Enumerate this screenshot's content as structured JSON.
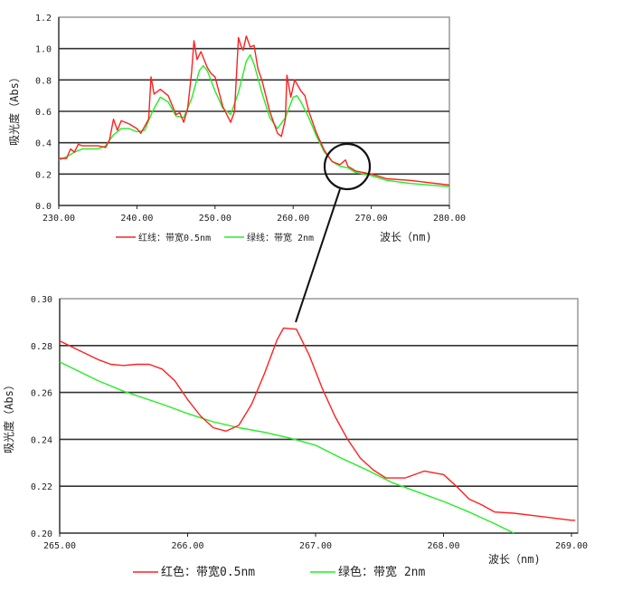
{
  "colors": {
    "red": "#ff2020",
    "green": "#22ee22",
    "grid": "#333333",
    "frame": "#999999"
  },
  "chart_data": [
    {
      "type": "line",
      "title": "",
      "xlabel": "波长（nm)",
      "ylabel": "吸光度（Abs）",
      "xlim": [
        230,
        280
      ],
      "ylim": [
        0,
        1.2
      ],
      "xticks": [
        "230.00",
        "240.00",
        "250.00",
        "260.00",
        "270.00",
        "280.00"
      ],
      "yticks": [
        "0.0",
        "0.2",
        "0.4",
        "0.6",
        "0.8",
        "1.0",
        "1.2"
      ],
      "grid": true,
      "legend_position": "bottom",
      "annotation": "circle around 265–270 nm region magnified below",
      "series": [
        {
          "name": "红线：带宽0.5nm",
          "color": "#ff2020",
          "points": [
            [
              230,
              0.3
            ],
            [
              231,
              0.3
            ],
            [
              231.5,
              0.36
            ],
            [
              232,
              0.34
            ],
            [
              232.5,
              0.39
            ],
            [
              233,
              0.38
            ],
            [
              235,
              0.38
            ],
            [
              236,
              0.37
            ],
            [
              236.5,
              0.42
            ],
            [
              237,
              0.55
            ],
            [
              237.5,
              0.48
            ],
            [
              238,
              0.54
            ],
            [
              239,
              0.52
            ],
            [
              240,
              0.49
            ],
            [
              240.5,
              0.46
            ],
            [
              241.5,
              0.55
            ],
            [
              241.8,
              0.82
            ],
            [
              242.2,
              0.71
            ],
            [
              243,
              0.74
            ],
            [
              244,
              0.7
            ],
            [
              245,
              0.58
            ],
            [
              245.5,
              0.59
            ],
            [
              246,
              0.53
            ],
            [
              246.5,
              0.62
            ],
            [
              247,
              0.85
            ],
            [
              247.3,
              1.05
            ],
            [
              247.7,
              0.93
            ],
            [
              248.2,
              0.98
            ],
            [
              249,
              0.88
            ],
            [
              249.5,
              0.84
            ],
            [
              250,
              0.82
            ],
            [
              251,
              0.63
            ],
            [
              252,
              0.53
            ],
            [
              252.5,
              0.6
            ],
            [
              253,
              1.07
            ],
            [
              253.3,
              1.02
            ],
            [
              253.6,
              0.99
            ],
            [
              254,
              1.08
            ],
            [
              254.5,
              1.01
            ],
            [
              255,
              1.02
            ],
            [
              255.5,
              0.87
            ],
            [
              256,
              0.8
            ],
            [
              257,
              0.6
            ],
            [
              258,
              0.46
            ],
            [
              258.5,
              0.44
            ],
            [
              259,
              0.55
            ],
            [
              259.2,
              0.83
            ],
            [
              259.7,
              0.69
            ],
            [
              260.2,
              0.8
            ],
            [
              261,
              0.73
            ],
            [
              261.5,
              0.7
            ],
            [
              262,
              0.6
            ],
            [
              263,
              0.46
            ],
            [
              264,
              0.35
            ],
            [
              265,
              0.28
            ],
            [
              266,
              0.26
            ],
            [
              266.7,
              0.29
            ],
            [
              267,
              0.25
            ],
            [
              268,
              0.22
            ],
            [
              270,
              0.2
            ],
            [
              272,
              0.17
            ],
            [
              275,
              0.16
            ],
            [
              280,
              0.13
            ]
          ]
        },
        {
          "name": "绿线：带宽  2nm",
          "color": "#22ee22",
          "points": [
            [
              230,
              0.29
            ],
            [
              231,
              0.31
            ],
            [
              232,
              0.34
            ],
            [
              233,
              0.36
            ],
            [
              235,
              0.36
            ],
            [
              236,
              0.38
            ],
            [
              237,
              0.45
            ],
            [
              238,
              0.49
            ],
            [
              239,
              0.49
            ],
            [
              240,
              0.47
            ],
            [
              241,
              0.48
            ],
            [
              242,
              0.6
            ],
            [
              243,
              0.69
            ],
            [
              244,
              0.66
            ],
            [
              245,
              0.57
            ],
            [
              246,
              0.56
            ],
            [
              247,
              0.68
            ],
            [
              248,
              0.86
            ],
            [
              248.5,
              0.89
            ],
            [
              249,
              0.86
            ],
            [
              250,
              0.73
            ],
            [
              251,
              0.62
            ],
            [
              252,
              0.58
            ],
            [
              253,
              0.72
            ],
            [
              254,
              0.92
            ],
            [
              254.5,
              0.96
            ],
            [
              255,
              0.9
            ],
            [
              256,
              0.72
            ],
            [
              257,
              0.56
            ],
            [
              258,
              0.49
            ],
            [
              259,
              0.56
            ],
            [
              260,
              0.69
            ],
            [
              260.5,
              0.7
            ],
            [
              261,
              0.66
            ],
            [
              262,
              0.56
            ],
            [
              263,
              0.44
            ],
            [
              264,
              0.34
            ],
            [
              265,
              0.28
            ],
            [
              266,
              0.25
            ],
            [
              267,
              0.24
            ],
            [
              268,
              0.21
            ],
            [
              270,
              0.19
            ],
            [
              272,
              0.16
            ],
            [
              275,
              0.14
            ],
            [
              280,
              0.12
            ]
          ]
        }
      ]
    },
    {
      "type": "line",
      "title": "",
      "xlabel": "波长（nm)",
      "ylabel": "吸光度（Abs）",
      "xlim": [
        265,
        269
      ],
      "ylim": [
        0.2,
        0.3
      ],
      "xticks": [
        "265.00",
        "266.00",
        "267.00",
        "268.00",
        "269.00"
      ],
      "yticks": [
        "0.20",
        "0.22",
        "0.24",
        "0.26",
        "0.28",
        "0.30"
      ],
      "grid": true,
      "legend_position": "bottom",
      "series": [
        {
          "name": "红色：带宽0.5nm",
          "color": "#ff2020",
          "points": [
            [
              265,
              0.282
            ],
            [
              265.15,
              0.278
            ],
            [
              265.3,
              0.274
            ],
            [
              265.4,
              0.272
            ],
            [
              265.5,
              0.2715
            ],
            [
              265.6,
              0.272
            ],
            [
              265.7,
              0.272
            ],
            [
              265.8,
              0.27
            ],
            [
              265.9,
              0.265
            ],
            [
              266.0,
              0.257
            ],
            [
              266.1,
              0.25
            ],
            [
              266.2,
              0.245
            ],
            [
              266.3,
              0.2435
            ],
            [
              266.4,
              0.246
            ],
            [
              266.5,
              0.255
            ],
            [
              266.6,
              0.268
            ],
            [
              266.7,
              0.2825
            ],
            [
              266.75,
              0.2875
            ],
            [
              266.85,
              0.287
            ],
            [
              266.95,
              0.276
            ],
            [
              267.05,
              0.262
            ],
            [
              267.15,
              0.25
            ],
            [
              267.25,
              0.24
            ],
            [
              267.35,
              0.232
            ],
            [
              267.45,
              0.227
            ],
            [
              267.55,
              0.2235
            ],
            [
              267.7,
              0.2235
            ],
            [
              267.85,
              0.2265
            ],
            [
              268.0,
              0.225
            ],
            [
              268.1,
              0.22
            ],
            [
              268.2,
              0.2145
            ],
            [
              268.3,
              0.212
            ],
            [
              268.4,
              0.209
            ],
            [
              268.55,
              0.2085
            ],
            [
              268.7,
              0.2075
            ],
            [
              268.85,
              0.2065
            ],
            [
              269.0,
              0.2055
            ],
            [
              269.03,
              0.2055
            ]
          ]
        },
        {
          "name": "绿色：带宽  2nm",
          "color": "#22ee22",
          "points": [
            [
              265,
              0.273
            ],
            [
              265.3,
              0.265
            ],
            [
              265.5,
              0.2605
            ],
            [
              265.8,
              0.255
            ],
            [
              266.0,
              0.251
            ],
            [
              266.2,
              0.2475
            ],
            [
              266.4,
              0.245
            ],
            [
              266.6,
              0.243
            ],
            [
              266.8,
              0.2405
            ],
            [
              267.0,
              0.2375
            ],
            [
              267.2,
              0.232
            ],
            [
              267.4,
              0.227
            ],
            [
              267.6,
              0.2215
            ],
            [
              267.8,
              0.2175
            ],
            [
              268.0,
              0.2135
            ],
            [
              268.2,
              0.209
            ],
            [
              268.4,
              0.204
            ],
            [
              268.55,
              0.2
            ]
          ]
        }
      ]
    }
  ]
}
